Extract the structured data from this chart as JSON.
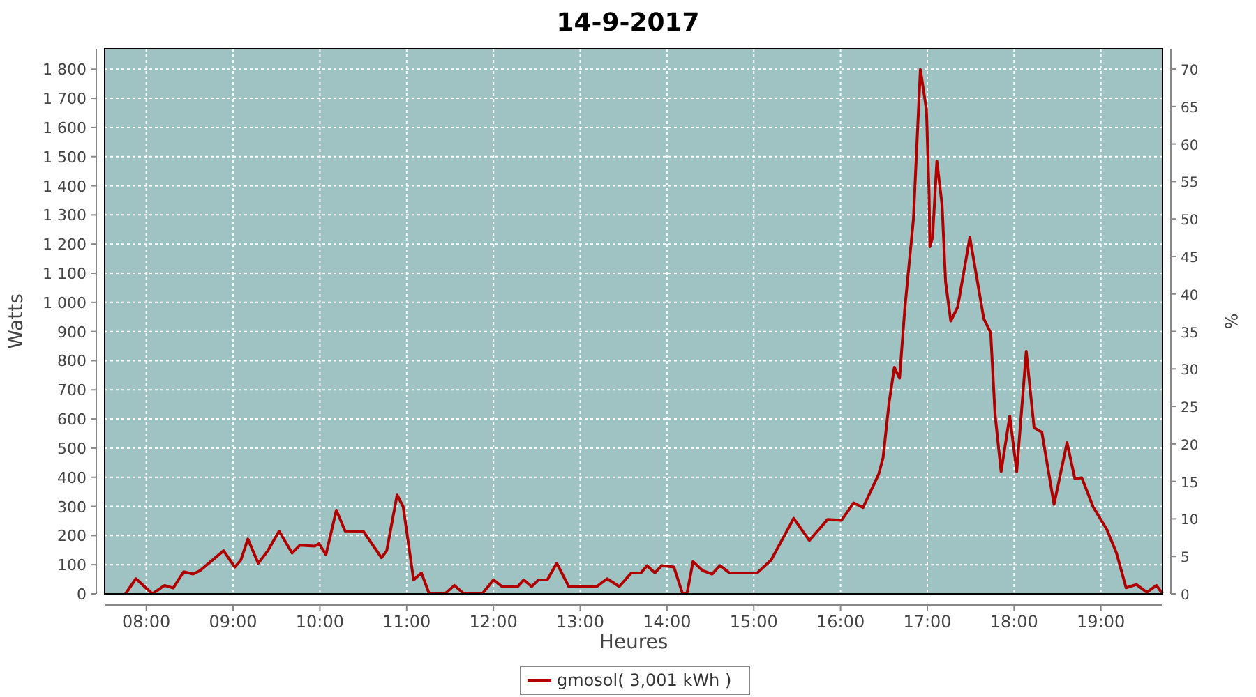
{
  "chart_data": {
    "type": "line",
    "title": "14-9-2017",
    "xlabel": "Heures",
    "ylabel": "Watts",
    "y2label": "%",
    "x": [
      7.76,
      7.88,
      8.07,
      8.21,
      8.31,
      8.43,
      8.54,
      8.62,
      8.89,
      9.02,
      9.09,
      9.17,
      9.29,
      9.4,
      9.53,
      9.68,
      9.77,
      9.94,
      9.99,
      10.07,
      10.19,
      10.29,
      10.5,
      10.71,
      10.77,
      10.89,
      10.96,
      11.08,
      11.17,
      11.26,
      11.44,
      11.55,
      11.66,
      11.87,
      12.0,
      12.1,
      12.28,
      12.35,
      12.44,
      12.52,
      12.62,
      12.73,
      12.87,
      13.19,
      13.31,
      13.45,
      13.59,
      13.7,
      13.77,
      13.86,
      13.94,
      14.08,
      14.18,
      14.23,
      14.3,
      14.41,
      14.52,
      14.61,
      14.72,
      15.04,
      15.2,
      15.46,
      15.64,
      15.85,
      16.01,
      16.15,
      16.26,
      16.44,
      16.49,
      16.56,
      16.62,
      16.68,
      16.74,
      16.84,
      16.92,
      16.99,
      17.02,
      17.03,
      17.06,
      17.11,
      17.17,
      17.21,
      17.27,
      17.35,
      17.49,
      17.6,
      17.65,
      17.73,
      17.78,
      17.85,
      17.95,
      18.03,
      18.14,
      18.23,
      18.32,
      18.46,
      18.61,
      18.7,
      18.78,
      18.91,
      19.07,
      19.18,
      19.29,
      19.41,
      19.53,
      19.64,
      19.71
    ],
    "series": [
      {
        "name": "gmosol( 3,001 kWh )",
        "color": "#b00000",
        "values": [
          0,
          52,
          0,
          29,
          20,
          76,
          68,
          80,
          148,
          92,
          116,
          188,
          105,
          148,
          215,
          140,
          167,
          164,
          172,
          135,
          287,
          216,
          215,
          124,
          148,
          339,
          299,
          48,
          72,
          0,
          0,
          29,
          0,
          0,
          48,
          25,
          25,
          48,
          25,
          48,
          48,
          105,
          24,
          25,
          52,
          25,
          72,
          72,
          97,
          72,
          97,
          92,
          0,
          0,
          111,
          80,
          68,
          97,
          72,
          72,
          116,
          259,
          183,
          255,
          252,
          312,
          296,
          411,
          467,
          658,
          777,
          740,
          976,
          1286,
          1799,
          1660,
          1374,
          1191,
          1223,
          1485,
          1334,
          1071,
          936,
          984,
          1223,
          1032,
          944,
          896,
          617,
          419,
          610,
          419,
          832,
          570,
          554,
          307,
          519,
          395,
          398,
          299,
          220,
          140,
          21,
          32,
          5,
          29,
          0
        ]
      }
    ],
    "xlim": [
      7.52,
      19.71
    ],
    "xticks": [
      {
        "value": 8,
        "label": "08:00"
      },
      {
        "value": 9,
        "label": "09:00"
      },
      {
        "value": 10,
        "label": "10:00"
      },
      {
        "value": 11,
        "label": "11:00"
      },
      {
        "value": 12,
        "label": "12:00"
      },
      {
        "value": 13,
        "label": "13:00"
      },
      {
        "value": 14,
        "label": "14:00"
      },
      {
        "value": 15,
        "label": "15:00"
      },
      {
        "value": 16,
        "label": "16:00"
      },
      {
        "value": 17,
        "label": "17:00"
      },
      {
        "value": 18,
        "label": "18:00"
      },
      {
        "value": 19,
        "label": "19:00"
      }
    ],
    "ylim": [
      0,
      1870
    ],
    "yticks": [
      0,
      100,
      200,
      300,
      400,
      500,
      600,
      700,
      800,
      900,
      {
        "value": 1000,
        "label": "1 000"
      },
      {
        "value": 1100,
        "label": "1 100"
      },
      {
        "value": 1200,
        "label": "1 200"
      },
      {
        "value": 1300,
        "label": "1 300"
      },
      {
        "value": 1400,
        "label": "1 400"
      },
      {
        "value": 1500,
        "label": "1 500"
      },
      {
        "value": 1600,
        "label": "1 600"
      },
      {
        "value": 1700,
        "label": "1 700"
      },
      {
        "value": 1800,
        "label": "1 800"
      }
    ],
    "y2lim": [
      0,
      72.7
    ],
    "y2ticks": [
      0,
      5,
      10,
      15,
      20,
      25,
      30,
      35,
      40,
      45,
      50,
      55,
      60,
      65,
      70
    ],
    "grid": true,
    "legend": "bottom",
    "line_style": "solid",
    "marker": "none"
  }
}
